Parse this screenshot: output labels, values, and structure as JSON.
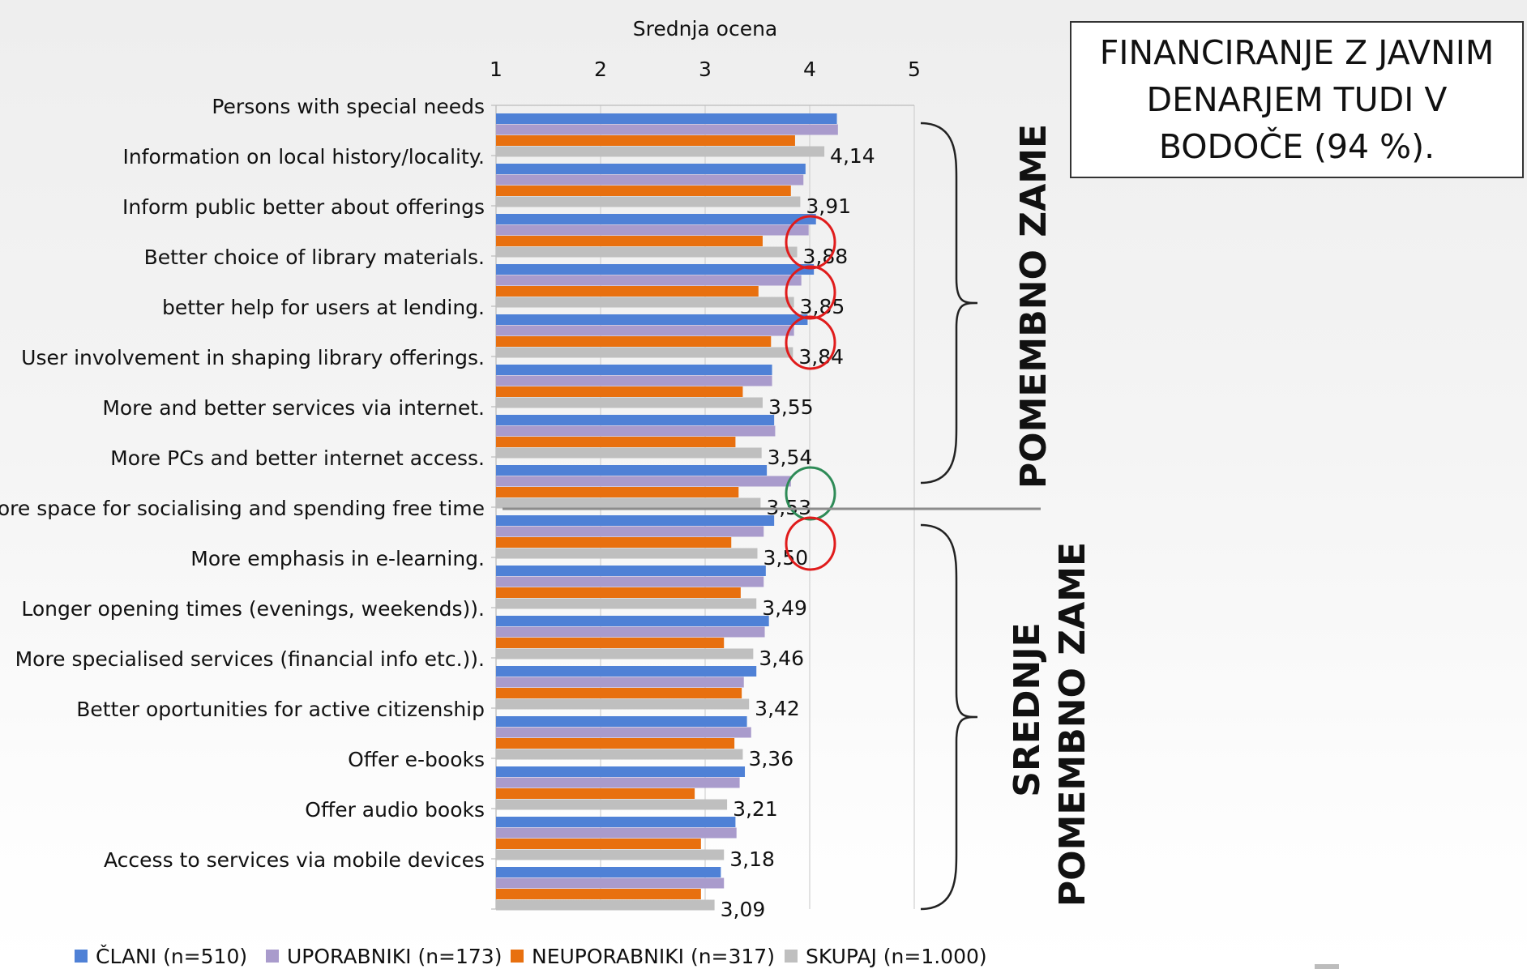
{
  "title_box": {
    "text": "FINANCIRANJE Z JAVNIM DENARJEM TUDI V BODOČE (94 %)."
  },
  "group_labels": {
    "important": "POMEMBNO ZAME",
    "medium_line1": "SREDNJE",
    "medium_line2": "POMEMBNO ZAME"
  },
  "chart_data": {
    "type": "bar",
    "orientation": "horizontal",
    "xlabel": "Srednja ocena",
    "xlim": [
      1,
      5
    ],
    "xticks": [
      "1",
      "2",
      "3",
      "4",
      "5"
    ],
    "grid": true,
    "legend_position": "bottom",
    "categories": [
      "Persons with special needs",
      "Information on local history/locality.",
      "Inform public better about offerings",
      "Better choice of library materials.",
      "better help for users at lending.",
      "User involvement in shaping library offerings.",
      "More and better services via internet.",
      "More PCs and better internet access.",
      "More space for socialising and spending free time",
      "More emphasis in e-learning.",
      "Longer opening times (evenings, weekends)).",
      "More specialised services (financial info etc.)).",
      "Better oportunities for active citizenship",
      "Offer e-books",
      "Offer audio books",
      "Access to services via mobile devices"
    ],
    "series": [
      {
        "name": "ČLANI (n=510)",
        "color": "#4f81d6",
        "values": [
          4.26,
          3.96,
          4.06,
          4.04,
          3.98,
          3.64,
          3.66,
          3.59,
          3.66,
          3.58,
          3.61,
          3.49,
          3.4,
          3.38,
          3.29,
          3.15
        ]
      },
      {
        "name": "UPORABNIKI (n=173)",
        "color": "#a99bcc",
        "values": [
          4.27,
          3.94,
          3.99,
          3.92,
          3.85,
          3.64,
          3.67,
          3.82,
          3.56,
          3.56,
          3.57,
          3.37,
          3.44,
          3.33,
          3.3,
          3.18
        ]
      },
      {
        "name": "NEUPORABNIKI (n=317)",
        "color": "#e8700f",
        "values": [
          3.86,
          3.82,
          3.55,
          3.51,
          3.63,
          3.36,
          3.29,
          3.32,
          3.25,
          3.34,
          3.18,
          3.35,
          3.28,
          2.9,
          2.96,
          2.96
        ]
      },
      {
        "name": "SKUPAJ (n=1.000)",
        "color": "#bfbfbf",
        "values": [
          4.14,
          3.91,
          3.88,
          3.85,
          3.84,
          3.55,
          3.54,
          3.53,
          3.5,
          3.49,
          3.46,
          3.42,
          3.36,
          3.21,
          3.18,
          3.09
        ]
      }
    ],
    "data_labels": [
      "4,14",
      "3,91",
      "3,88",
      "3,85",
      "3,84",
      "3,55",
      "3,54",
      "3,53",
      "3,50",
      "3,49",
      "3,46",
      "3,42",
      "3,36",
      "3,21",
      "3,18",
      "3,09"
    ],
    "highlight_circles": [
      {
        "category_index": 2,
        "color": "#e01b1b"
      },
      {
        "category_index": 3,
        "color": "#e01b1b"
      },
      {
        "category_index": 4,
        "color": "#e01b1b"
      },
      {
        "category_index": 7,
        "color": "#2e8b57"
      },
      {
        "category_index": 8,
        "color": "#e01b1b"
      }
    ]
  }
}
